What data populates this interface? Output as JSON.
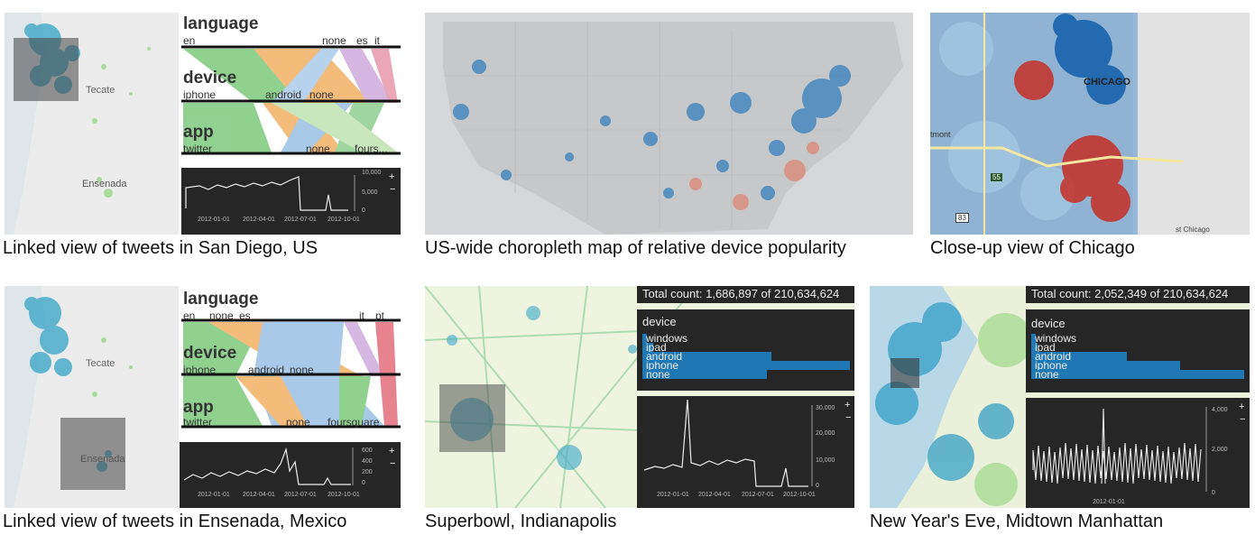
{
  "captions": {
    "sandiego": "Linked view of tweets in San Diego, US",
    "uswide": "US-wide choropleth map of relative device popularity",
    "chicago": "Close-up view of Chicago",
    "ensenada": "Linked view of tweets in Ensenada, Mexico",
    "superbowl": "Superbowl, Indianapolis",
    "newyear": "New Year's Eve, Midtown Manhattan"
  },
  "map_labels": {
    "sandiego_city": "Tecate",
    "sandiego_south": "Ensenada",
    "ensenada_city": "Tecate",
    "ensenada_south": "Ensenada",
    "chicago_city": "CHICAGO",
    "chicago_south": "st Chicago",
    "chicago_route1": "55",
    "chicago_route2": "83",
    "chicago_west": "tmont"
  },
  "parallel_sets_top": {
    "dims": [
      {
        "name": "language",
        "cats": [
          "en",
          "none",
          "es",
          "it"
        ]
      },
      {
        "name": "device",
        "cats": [
          "iphone",
          "android",
          "none"
        ]
      },
      {
        "name": "app",
        "cats": [
          "twitter",
          "none",
          "fours..."
        ]
      }
    ]
  },
  "parallel_sets_bottom": {
    "dims": [
      {
        "name": "language",
        "cats": [
          "en",
          "none",
          "es",
          "it",
          "pt"
        ]
      },
      {
        "name": "device",
        "cats": [
          "iphone",
          "android",
          "none"
        ]
      },
      {
        "name": "app",
        "cats": [
          "twitter",
          "none",
          "foursquare"
        ]
      }
    ]
  },
  "timeline_top": {
    "yticks": [
      "10,000",
      "5,000",
      "0"
    ],
    "xticks": [
      "2012-01-01",
      "2012-04-01",
      "2012-07-01",
      "2012-10-01"
    ],
    "plus": "+",
    "minus": "−"
  },
  "timeline_bottom": {
    "yticks": [
      "600",
      "400",
      "200",
      "0"
    ],
    "xticks": [
      "2012-01-01",
      "2012-04-01",
      "2012-07-01",
      "2012-10-01"
    ],
    "plus": "+",
    "minus": "−"
  },
  "superbowl": {
    "total": "Total count: 1,686,897 of 210,634,624",
    "dim_title": "device",
    "bars": [
      {
        "label": "windows",
        "value": 0.02
      },
      {
        "label": "ipad",
        "value": 0.05
      },
      {
        "label": "android",
        "value": 0.62
      },
      {
        "label": "iphone",
        "value": 1.0
      },
      {
        "label": "none",
        "value": 0.6
      }
    ],
    "yticks": [
      "30,000",
      "20,000",
      "10,000",
      "0"
    ],
    "xticks": [
      "2012-01-01",
      "2012-04-01",
      "2012-07-01",
      "2012-10-01"
    ],
    "plus": "+",
    "minus": "−"
  },
  "newyear": {
    "total": "Total count: 2,052,349 of 210,634,624",
    "dim_title": "device",
    "bars": [
      {
        "label": "windows",
        "value": 0.02
      },
      {
        "label": "ipad",
        "value": 0.03
      },
      {
        "label": "android",
        "value": 0.45
      },
      {
        "label": "iphone",
        "value": 0.7
      },
      {
        "label": "none",
        "value": 1.0
      }
    ],
    "yticks": [
      "4,000",
      "2,000",
      "0"
    ],
    "xticks": [
      "2012-01-01"
    ],
    "plus": "+",
    "minus": "−"
  },
  "colors": {
    "bar": "#1f77b4",
    "panel": "#262626",
    "blue": "#2171b5",
    "red": "#d7301f"
  }
}
